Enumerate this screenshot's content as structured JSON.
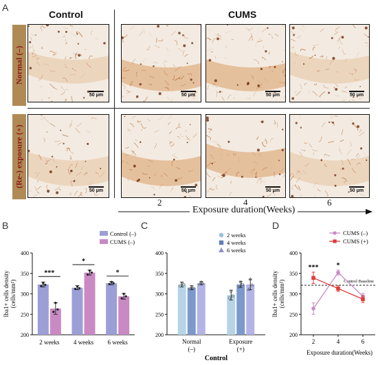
{
  "panels": {
    "a": "A",
    "b": "B",
    "c": "C",
    "d": "D"
  },
  "figure_a": {
    "col_control": "Control",
    "col_cums": "CUMS",
    "row_normal": "Normal (–)",
    "row_exposure": "(Re-) exposure (+)",
    "scale_label": "50 μm",
    "week_ticks": [
      "2",
      "4",
      "6"
    ],
    "axis_label": "Exposure duration(Weeks)"
  },
  "chart_data": [
    {
      "type": "bar",
      "panel": "B",
      "ylabel": "Iba1+ cells density (cells/mm²)",
      "ylim": [
        200,
        400
      ],
      "yticks": [
        200,
        250,
        300,
        350,
        400
      ],
      "categories": [
        "2 weeks",
        "4 weeks",
        "6 weeks"
      ],
      "legend_position": "top-right",
      "series": [
        {
          "name": "Control (–)",
          "color": "#9b9fd6",
          "values": [
            323,
            315,
            326
          ],
          "err": [
            6,
            5,
            4
          ],
          "points": [
            [
              319,
              326,
              322
            ],
            [
              312,
              318,
              314
            ],
            [
              324,
              329,
              326
            ]
          ]
        },
        {
          "name": "CUMS (–)",
          "color": "#c98ac4",
          "values": [
            264,
            352,
            294
          ],
          "err": [
            14,
            6,
            7
          ],
          "points": [
            [
              256,
              278,
              262
            ],
            [
              347,
              357,
              352
            ],
            [
              289,
              300,
              294
            ]
          ]
        }
      ],
      "significance": [
        "***",
        "*",
        "*"
      ]
    },
    {
      "type": "bar",
      "panel": "C",
      "ylim": [
        200,
        400
      ],
      "yticks": [
        200,
        250,
        300,
        350,
        400
      ],
      "categories": [
        "Normal",
        "Exposure"
      ],
      "category_sublabels": [
        "(–)",
        "(+)"
      ],
      "xlabel": "Control",
      "legend": [
        {
          "name": "2 weeks",
          "marker": "circle"
        },
        {
          "name": "4 weeks",
          "marker": "square"
        },
        {
          "name": "6 weeks",
          "marker": "triangle"
        }
      ],
      "legend_position": "top-right",
      "series": [
        {
          "name": "2 weeks",
          "color": "#b6d4e6",
          "values": [
            323,
            297
          ],
          "err": [
            6,
            12
          ],
          "points": [
            [
              319,
              326,
              323
            ],
            [
              290,
              306,
              295
            ]
          ]
        },
        {
          "name": "4 weeks",
          "color": "#7c99cc",
          "values": [
            315,
            323
          ],
          "err": [
            5,
            7
          ],
          "points": [
            [
              312,
              318,
              314
            ],
            [
              317,
              329,
              323
            ]
          ]
        },
        {
          "name": "6 weeks",
          "color": "#b3b3e6",
          "values": [
            326,
            323
          ],
          "err": [
            4,
            13
          ],
          "points": [
            [
              324,
              329,
              326
            ],
            [
              311,
              336,
              322
            ]
          ]
        }
      ]
    },
    {
      "type": "line",
      "panel": "D",
      "ylabel": "Iba1+ cells density (cells/mm²)",
      "xlabel": "Exposure duration(Weeks)",
      "x": [
        2,
        4,
        6
      ],
      "ylim": [
        200,
        400
      ],
      "yticks": [
        200,
        250,
        300,
        350,
        400
      ],
      "baseline": {
        "value": 321,
        "label": "Control Baseline"
      },
      "legend_position": "top-right",
      "series": [
        {
          "name": "CUMS (–)",
          "color": "#c98ac4",
          "marker": "circle",
          "values": [
            264,
            352,
            294
          ],
          "err": [
            14,
            6,
            7
          ]
        },
        {
          "name": "CUMS (+)",
          "color": "#e03a3a",
          "marker": "square",
          "values": [
            339,
            313,
            287
          ],
          "err": [
            14,
            7,
            8
          ]
        }
      ],
      "significance": [
        {
          "x": 2,
          "label": "***"
        },
        {
          "x": 4,
          "label": "*"
        }
      ]
    }
  ]
}
